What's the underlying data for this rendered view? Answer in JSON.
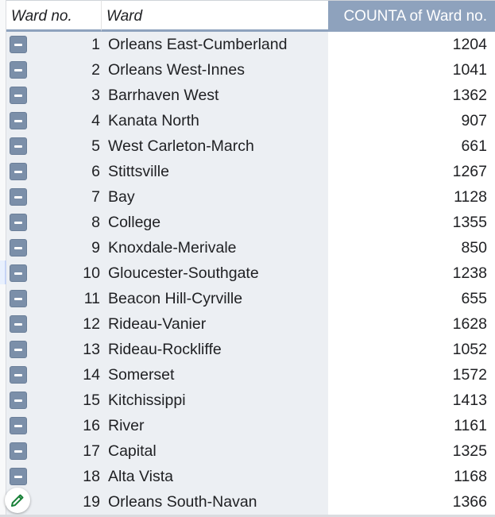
{
  "pivot": {
    "headers": {
      "ward_no": "Ward no.",
      "ward": "Ward",
      "count": "COUNTA of Ward no."
    },
    "rows": [
      {
        "no": "1",
        "ward": "Orleans East-Cumberland",
        "count": "1204"
      },
      {
        "no": "2",
        "ward": "Orleans West-Innes",
        "count": "1041"
      },
      {
        "no": "3",
        "ward": "Barrhaven West",
        "count": "1362"
      },
      {
        "no": "4",
        "ward": "Kanata North",
        "count": "907"
      },
      {
        "no": "5",
        "ward": "West Carleton-March",
        "count": "661"
      },
      {
        "no": "6",
        "ward": "Stittsville",
        "count": "1267"
      },
      {
        "no": "7",
        "ward": "Bay",
        "count": "1128"
      },
      {
        "no": "8",
        "ward": "College",
        "count": "1355"
      },
      {
        "no": "9",
        "ward": "Knoxdale-Merivale",
        "count": "850"
      },
      {
        "no": "10",
        "ward": "Gloucester-Southgate",
        "count": "1238"
      },
      {
        "no": "11",
        "ward": "Beacon Hill-Cyrville",
        "count": "655"
      },
      {
        "no": "12",
        "ward": "Rideau-Vanier",
        "count": "1628"
      },
      {
        "no": "13",
        "ward": "Rideau-Rockliffe",
        "count": "1052"
      },
      {
        "no": "14",
        "ward": "Somerset",
        "count": "1572"
      },
      {
        "no": "15",
        "ward": "Kitchissippi",
        "count": "1413"
      },
      {
        "no": "16",
        "ward": "River",
        "count": "1161"
      },
      {
        "no": "17",
        "ward": "Capital",
        "count": "1325"
      },
      {
        "no": "18",
        "ward": "Alta Vista",
        "count": "1168"
      },
      {
        "no": "19",
        "ward": "Orleans South-Navan",
        "count": "1366"
      }
    ]
  },
  "icons": {
    "collapse": "minus-square-icon",
    "edit": "pencil-icon"
  },
  "colors": {
    "header_accent": "#8ea2bd",
    "row_label_bg": "#eceff3",
    "collapse_button": "#7b8fa9",
    "edit_icon": "#188038"
  }
}
